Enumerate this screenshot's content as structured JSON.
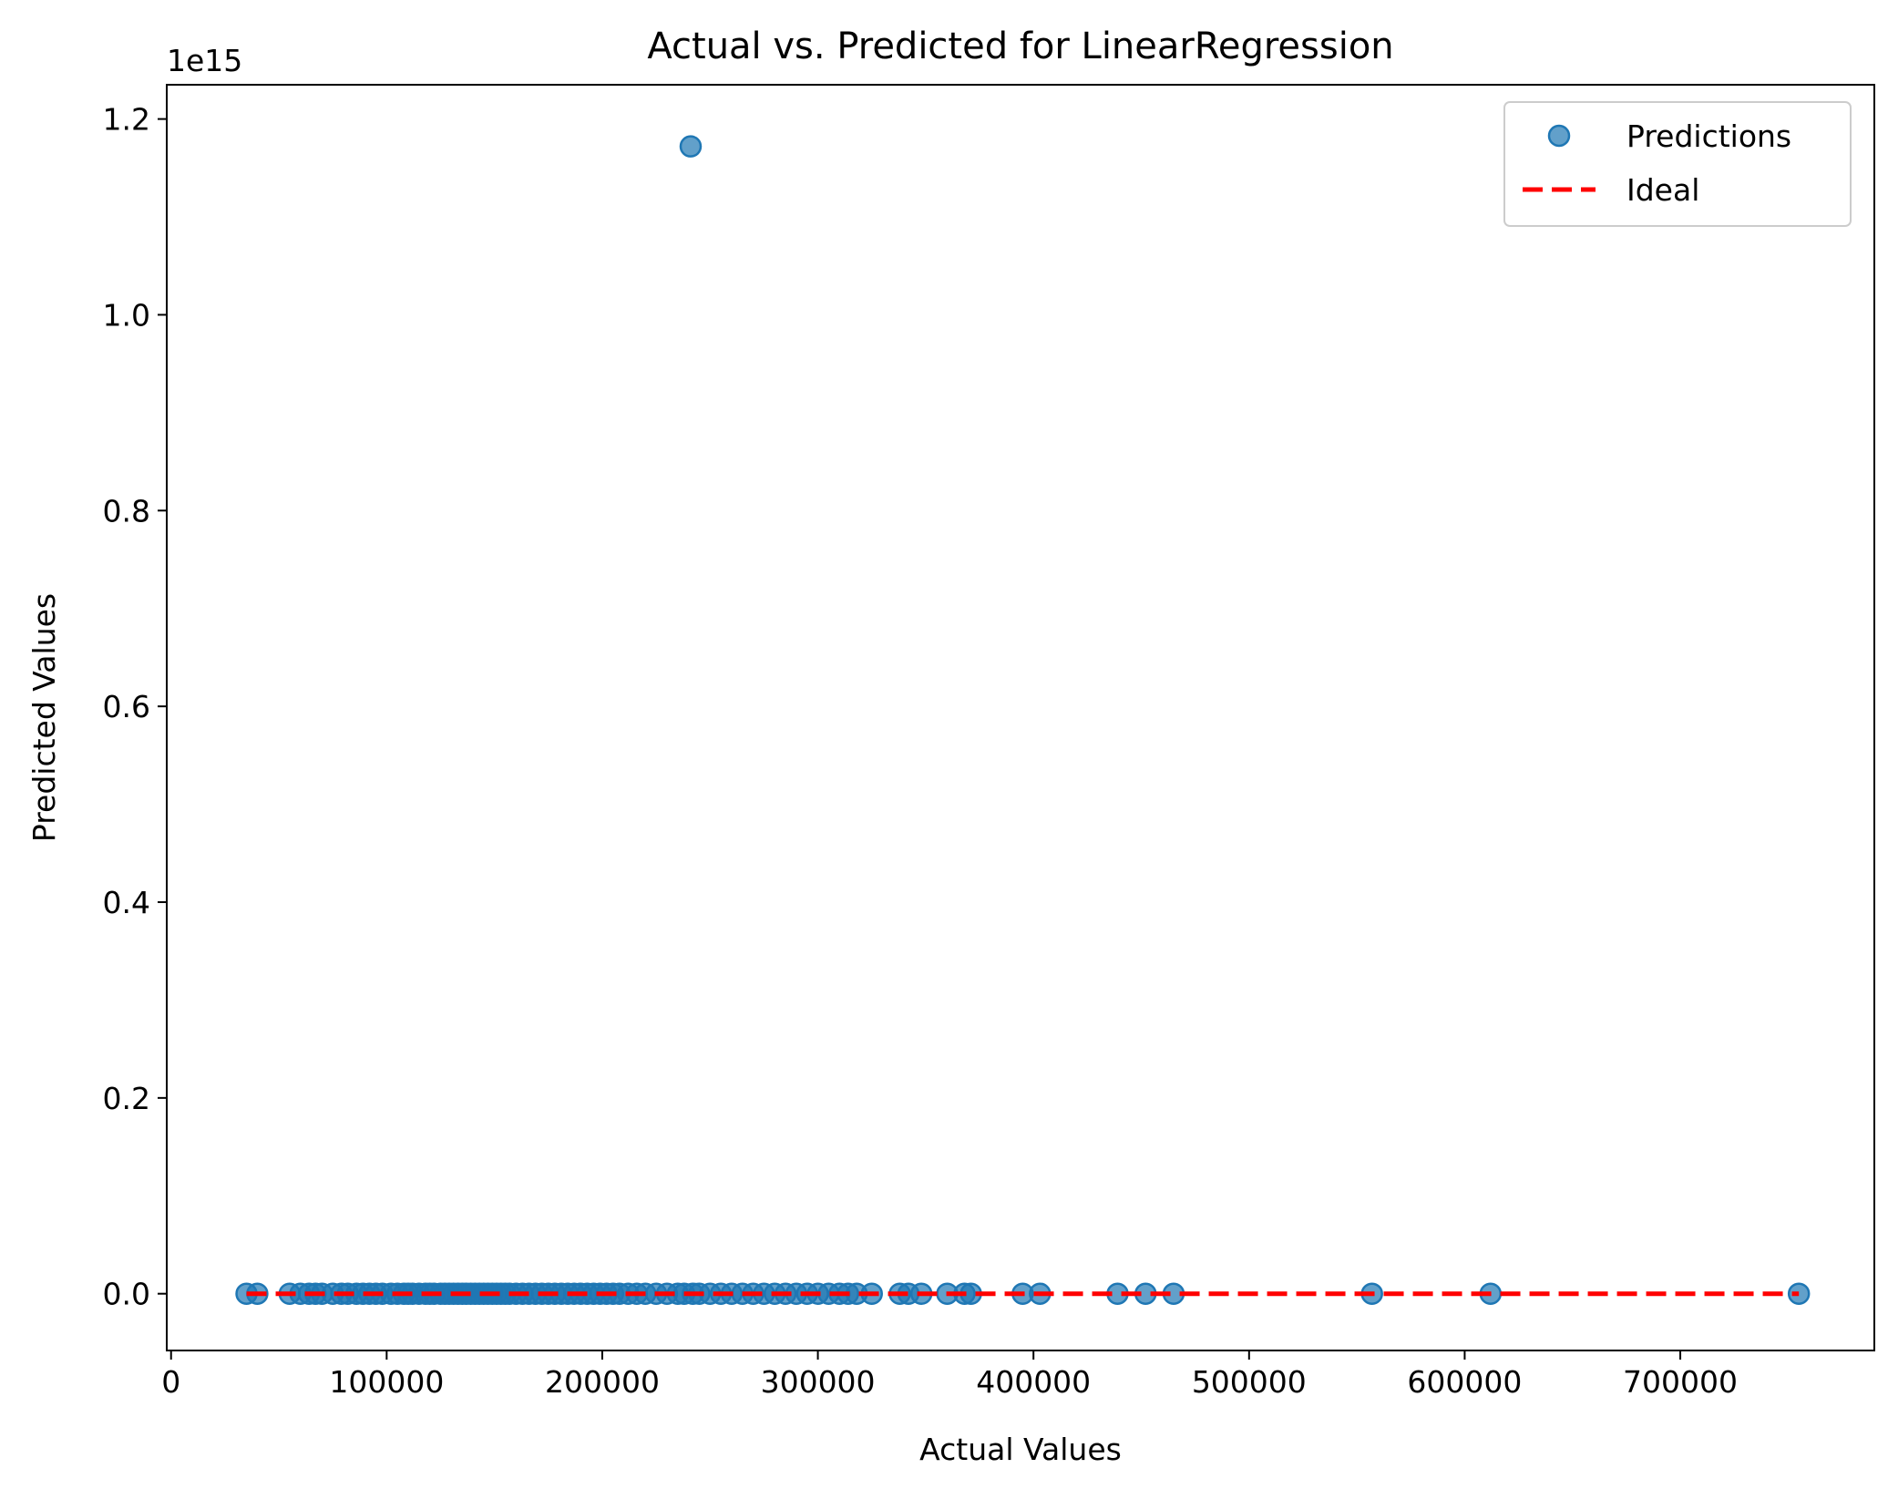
{
  "chart_data": {
    "type": "scatter",
    "title": "Actual vs. Predicted for LinearRegression",
    "xlabel": "Actual Values",
    "ylabel": "Predicted Values",
    "y_offset_label": "1e15",
    "xlim": [
      -2000,
      790000
    ],
    "ylim": [
      -0.058,
      1.235
    ],
    "y_scale_factor": 1000000000000000.0,
    "grid": false,
    "legend_position": "top-right",
    "x_ticks": [
      0,
      100000,
      200000,
      300000,
      400000,
      500000,
      600000,
      700000
    ],
    "x_tick_labels": [
      "0",
      "100000",
      "200000",
      "300000",
      "400000",
      "500000",
      "600000",
      "700000"
    ],
    "y_ticks": [
      0.0,
      0.2,
      0.4,
      0.6,
      0.8,
      1.0,
      1.2
    ],
    "y_tick_labels": [
      "0.0",
      "0.2",
      "0.4",
      "0.6",
      "0.8",
      "1.0",
      "1.2"
    ],
    "colors": {
      "predictions": "#1f77b4",
      "ideal": "#ff0000"
    },
    "series": [
      {
        "name": "Predictions",
        "kind": "scatter",
        "points": [
          [
            35000,
            0
          ],
          [
            40000,
            0
          ],
          [
            55000,
            0
          ],
          [
            60000,
            0
          ],
          [
            64000,
            0
          ],
          [
            67000,
            0
          ],
          [
            70000,
            0
          ],
          [
            75000,
            0
          ],
          [
            79000,
            0
          ],
          [
            82000,
            0
          ],
          [
            86000,
            0
          ],
          [
            89000,
            0
          ],
          [
            92000,
            0
          ],
          [
            95000,
            0
          ],
          [
            98000,
            0
          ],
          [
            102000,
            0
          ],
          [
            105000,
            0
          ],
          [
            108000,
            0
          ],
          [
            110000,
            0
          ],
          [
            112000,
            0
          ],
          [
            115000,
            0
          ],
          [
            118000,
            0
          ],
          [
            120000,
            0
          ],
          [
            122000,
            0
          ],
          [
            125000,
            0
          ],
          [
            127000,
            0
          ],
          [
            129000,
            0
          ],
          [
            131000,
            0
          ],
          [
            133000,
            0
          ],
          [
            135000,
            0
          ],
          [
            137000,
            0
          ],
          [
            139000,
            0
          ],
          [
            141000,
            0
          ],
          [
            143000,
            0
          ],
          [
            145000,
            0
          ],
          [
            147000,
            0
          ],
          [
            149000,
            0
          ],
          [
            151000,
            0
          ],
          [
            153000,
            0
          ],
          [
            155000,
            0
          ],
          [
            157000,
            0
          ],
          [
            160000,
            0
          ],
          [
            163000,
            0
          ],
          [
            166000,
            0
          ],
          [
            169000,
            0
          ],
          [
            172000,
            0
          ],
          [
            175000,
            0
          ],
          [
            178000,
            0
          ],
          [
            181000,
            0
          ],
          [
            184000,
            0
          ],
          [
            187000,
            0
          ],
          [
            190000,
            0
          ],
          [
            193000,
            0
          ],
          [
            196000,
            0
          ],
          [
            199000,
            0
          ],
          [
            202000,
            0
          ],
          [
            205000,
            0
          ],
          [
            208000,
            0
          ],
          [
            212000,
            0
          ],
          [
            216000,
            0
          ],
          [
            220000,
            0
          ],
          [
            225000,
            0
          ],
          [
            230000,
            0
          ],
          [
            235000,
            0
          ],
          [
            238000,
            0
          ],
          [
            242000,
            0
          ],
          [
            245000,
            0
          ],
          [
            250000,
            0
          ],
          [
            255000,
            0
          ],
          [
            260000,
            0
          ],
          [
            265000,
            0
          ],
          [
            270000,
            0
          ],
          [
            275000,
            0
          ],
          [
            280000,
            0
          ],
          [
            285000,
            0
          ],
          [
            290000,
            0
          ],
          [
            295000,
            0
          ],
          [
            300000,
            0
          ],
          [
            305000,
            0
          ],
          [
            310000,
            0
          ],
          [
            314000,
            0
          ],
          [
            318000,
            0
          ],
          [
            325000,
            0
          ],
          [
            338000,
            0
          ],
          [
            342000,
            0
          ],
          [
            348000,
            0
          ],
          [
            360000,
            0
          ],
          [
            368000,
            0
          ],
          [
            371000,
            0
          ],
          [
            395000,
            0
          ],
          [
            403000,
            0
          ],
          [
            439000,
            0
          ],
          [
            452000,
            0
          ],
          [
            465000,
            0
          ],
          [
            557000,
            0
          ],
          [
            612000,
            0
          ],
          [
            755000,
            0
          ],
          [
            241000,
            1.172
          ]
        ]
      },
      {
        "name": "Ideal",
        "kind": "line",
        "style": "dashed",
        "points": [
          [
            35000,
            0
          ],
          [
            755000,
            0
          ]
        ]
      }
    ]
  }
}
